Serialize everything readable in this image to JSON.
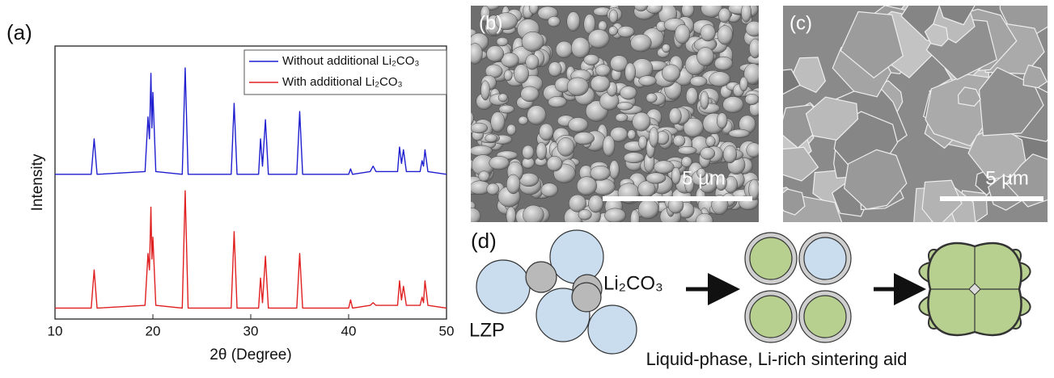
{
  "panels": {
    "a": "(a)",
    "b": "(b)",
    "c": "(c)",
    "d": "(d)"
  },
  "chart_data": {
    "type": "line",
    "x_label": "2θ (Degree)",
    "y_label": "Intensity",
    "x": [
      10,
      13.7,
      14,
      14.3,
      19.2,
      19.5,
      19.65,
      19.8,
      19.9,
      20.0,
      20.3,
      23.0,
      23.3,
      23.6,
      28.0,
      28.3,
      28.6,
      30.8,
      31.0,
      31.2,
      31.5,
      31.8,
      34.7,
      35.0,
      35.3,
      40.0,
      40.2,
      40.4,
      42.2,
      42.5,
      42.8,
      45.0,
      45.2,
      45.4,
      45.6,
      45.9,
      47.3,
      47.5,
      47.65,
      47.8,
      48.1,
      50
    ],
    "series": [
      {
        "name": "Without additional Li₂CO₃",
        "color": "#1f1fd0",
        "values": [
          53,
          53,
          66,
          53,
          54,
          74,
          66,
          90,
          70,
          83,
          54,
          53,
          92,
          53,
          53,
          79,
          53,
          53,
          66,
          56,
          73,
          53,
          53,
          76,
          53,
          53,
          55,
          53,
          54,
          56,
          54,
          54,
          63,
          57,
          62,
          54,
          54,
          58,
          56,
          62,
          54,
          53
        ]
      },
      {
        "name": "With additional Li₂CO₃",
        "color": "#e02020",
        "values": [
          4,
          4,
          18,
          4,
          5,
          24,
          18,
          41,
          22,
          30,
          5,
          4,
          47,
          4,
          4,
          32,
          4,
          4,
          15,
          6,
          23,
          4,
          4,
          24,
          4,
          4,
          7,
          4,
          5,
          6,
          5,
          5,
          14,
          7,
          12,
          5,
          5,
          8,
          6,
          14,
          5,
          4
        ]
      }
    ],
    "xlim": [
      10,
      50
    ],
    "xticks": [
      10,
      20,
      30,
      40,
      50
    ],
    "ylim": [
      0,
      100
    ],
    "legend": "top-right"
  },
  "sem": {
    "b_scale": "5 µm",
    "c_scale": "5 µm"
  },
  "diagram": {
    "lzp": "LZP",
    "li2co3": "Li₂CO₃",
    "caption": "Liquid-phase, Li-rich sintering aid"
  }
}
